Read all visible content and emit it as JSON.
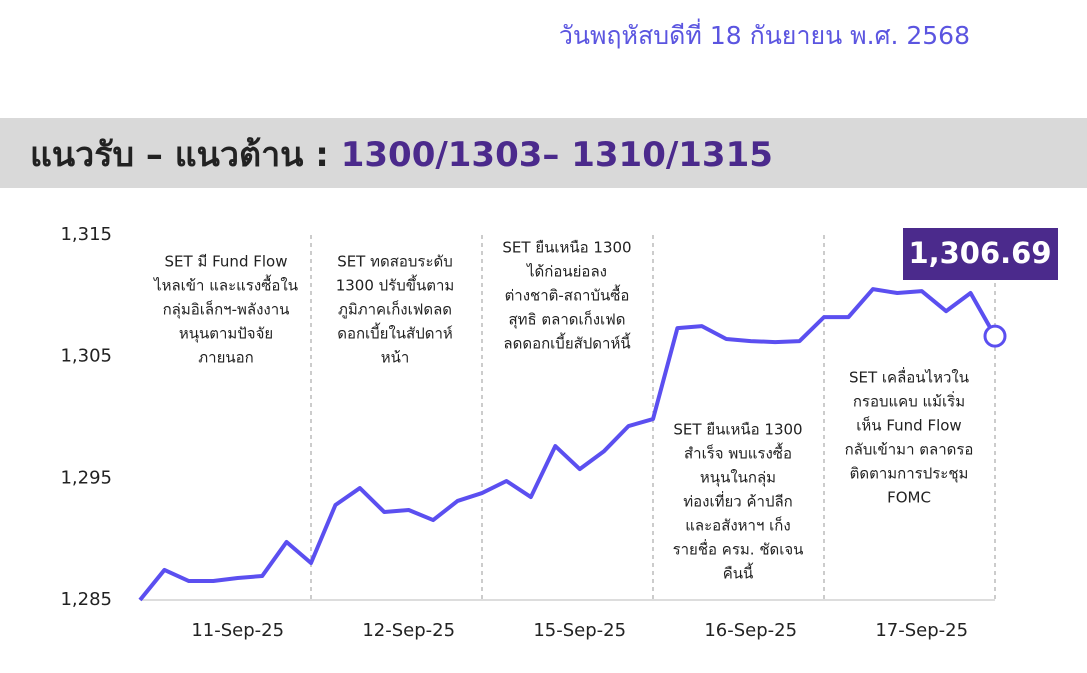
{
  "header": {
    "date": "วันพฤหัสบดีที่ 18 กันยายน พ.ศ. 2568",
    "title": "แนวรับ – แนวต้าน :",
    "levels": "1300/1303– 1310/1315"
  },
  "chart_data": {
    "type": "line",
    "categories": [
      null,
      null,
      null,
      null,
      "11-Sep-25",
      null,
      null,
      null,
      null,
      null,
      null,
      "12-Sep-25",
      null,
      null,
      null,
      null,
      null,
      null,
      "15-Sep-25",
      null,
      null,
      null,
      null,
      null,
      null,
      "16-Sep-25",
      null,
      null,
      null,
      null,
      null,
      null,
      "17-Sep-25",
      null,
      null,
      null
    ],
    "values": [
      1285,
      1287.47,
      1286.56,
      1286.56,
      1286.81,
      1286.97,
      1289.77,
      1288.04,
      1292.81,
      1294.2,
      1292.23,
      1292.4,
      1291.57,
      1293.14,
      1293.79,
      1294.78,
      1293.46,
      1297.65,
      1295.76,
      1297.24,
      1299.3,
      1299.87,
      1307.35,
      1307.51,
      1306.45,
      1306.28,
      1306.2,
      1306.28,
      1308.25,
      1308.25,
      1310.55,
      1310.23,
      1310.39,
      1308.74,
      1310.23,
      1306.69
    ],
    "value_labels": [
      null,
      null,
      null,
      null,
      null,
      null,
      null,
      null,
      null,
      null,
      null,
      null,
      null,
      null,
      null,
      null,
      null,
      null,
      null,
      null,
      null,
      null,
      null,
      null,
      null,
      null,
      null,
      null,
      null,
      null,
      null,
      null,
      null,
      null,
      null,
      "1,306.69"
    ],
    "color": "#5b4ff0",
    "ylim": [
      1285,
      1315
    ],
    "yticks": [
      {
        "value": 1285,
        "label": "1,285"
      },
      {
        "value": 1295,
        "label": "1,295"
      },
      {
        "value": 1305,
        "label": "1,305"
      },
      {
        "value": 1315,
        "label": "1,315"
      }
    ],
    "annotations": [
      {
        "lines": [
          "SET มี Fund Flow",
          "ไหลเข้า และแรงซื้อใน",
          "กลุ่มอิเล็กฯ-พลังงาน",
          "หนุนตามปัจจัย",
          "ภายนอก"
        ]
      },
      {
        "lines": [
          "SET ทดสอบระดับ",
          "1300 ปรับขึ้นตาม",
          "ภูมิภาคเก็งเฟดลด",
          "ดอกเบี้ยในสัปดาห์",
          "หน้า"
        ]
      },
      {
        "lines": [
          "SET ยืนเหนือ 1300",
          "ได้ก่อนย่อลง",
          "ต่างชาติ-สถาบันซื้อ",
          "สุทธิ ตลาดเก็งเฟด",
          "ลดดอกเบี้ยสัปดาห์นี้"
        ]
      },
      {
        "lines": [
          "SET ยืนเหนือ 1300",
          "สำเร็จ พบแรงซื้อ",
          "หนุนในกลุ่ม",
          "ท่องเที่ยว ค้าปลีก",
          "และอสังหาฯ เก็ง",
          "รายชื่อ ครม. ชัดเจน",
          "คืนนี้"
        ]
      },
      {
        "lines": [
          "SET เคลื่อนไหวใน",
          "กรอบแคบ แม้เริ่ม",
          "เห็น Fund Flow",
          "กลับเข้ามา ตลาดรอ",
          "ติดตามการประชุม",
          "FOMC"
        ]
      }
    ]
  }
}
